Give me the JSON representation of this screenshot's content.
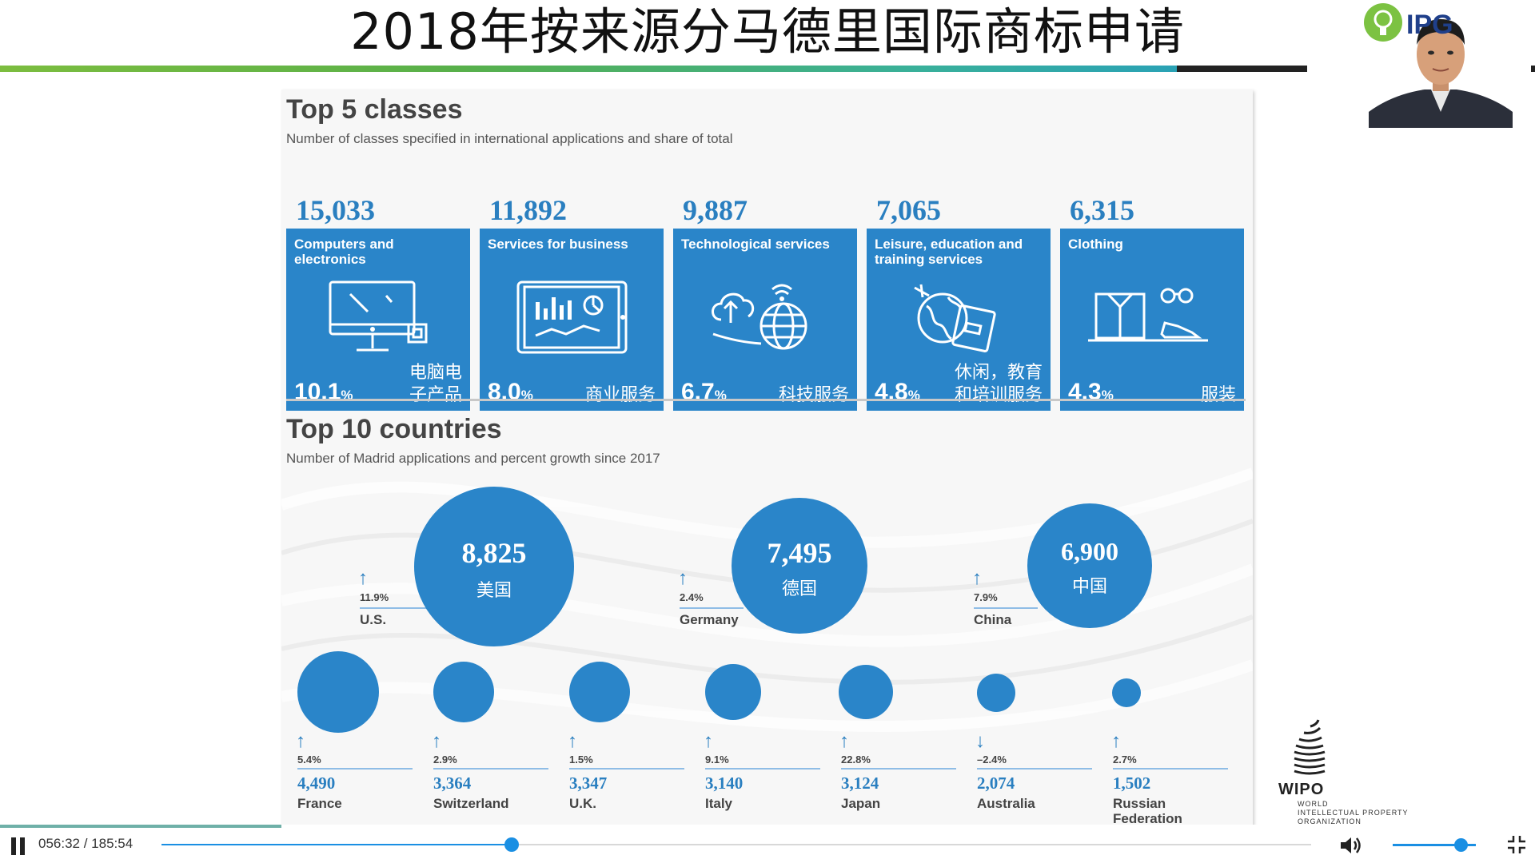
{
  "title": "2018年按来源分马德里国际商标申请",
  "classes_section": {
    "title": "Top 5 classes",
    "subtitle": "Number of classes specified in international applications and share of total",
    "items": [
      {
        "count": "15,033",
        "name": "Computers and electronics",
        "share": "10.1",
        "unit": "%",
        "cn": "电脑电\n子产品",
        "icon": "computer-icon"
      },
      {
        "count": "11,892",
        "name": "Services for business",
        "share": "8.0",
        "unit": "%",
        "cn": "商业服务",
        "icon": "tablet-chart-icon"
      },
      {
        "count": "9,887",
        "name": "Technological services",
        "share": "6.7",
        "unit": "%",
        "cn": "科技服务",
        "icon": "cloud-globe-icon"
      },
      {
        "count": "7,065",
        "name": "Leisure, education and training services",
        "share": "4.8",
        "unit": "%",
        "cn": "休闲，教育\n和培训服务",
        "icon": "globe-passport-icon"
      },
      {
        "count": "6,315",
        "name": "Clothing",
        "share": "4.3",
        "unit": "%",
        "cn": "服装",
        "icon": "clothing-icon"
      }
    ]
  },
  "countries_section": {
    "title": "Top 10 countries",
    "subtitle": "Number of Madrid applications and percent growth since 2017",
    "top": [
      {
        "name": "U.S.",
        "value": "8,825",
        "value_num": 8825,
        "cn": "美国",
        "growth": "11.9",
        "unit": "%",
        "direction": "up"
      },
      {
        "name": "Germany",
        "value": "7,495",
        "value_num": 7495,
        "cn": "德国",
        "growth": "2.4",
        "unit": "%",
        "direction": "up"
      },
      {
        "name": "China",
        "value": "6,900",
        "value_num": 6900,
        "cn": "中国",
        "growth": "7.9",
        "unit": "%",
        "direction": "up"
      }
    ],
    "others": [
      {
        "name": "France",
        "value": "4,490",
        "value_num": 4490,
        "growth": "5.4",
        "unit": "%",
        "direction": "up"
      },
      {
        "name": "Switzerland",
        "value": "3,364",
        "value_num": 3364,
        "growth": "2.9",
        "unit": "%",
        "direction": "up"
      },
      {
        "name": "U.K.",
        "value": "3,347",
        "value_num": 3347,
        "growth": "1.5",
        "unit": "%",
        "direction": "up"
      },
      {
        "name": "Italy",
        "value": "3,140",
        "value_num": 3140,
        "growth": "9.1",
        "unit": "%",
        "direction": "up"
      },
      {
        "name": "Japan",
        "value": "3,124",
        "value_num": 3124,
        "growth": "22.8",
        "unit": "%",
        "direction": "up"
      },
      {
        "name": "Australia",
        "value": "2,074",
        "value_num": 2074,
        "growth": "–2.4",
        "unit": "%",
        "direction": "down"
      },
      {
        "name": "Russian Federation",
        "value": "1,502",
        "value_num": 1502,
        "growth": "2.7",
        "unit": "%",
        "direction": "up"
      }
    ]
  },
  "wipo": {
    "name": "WIPO",
    "sub1": "WORLD",
    "sub2": "INTELLECTUAL PROPERTY",
    "sub3": "ORGANIZATION"
  },
  "webcam": {
    "logo_text": "IPG",
    "icon": "webcam-presenter"
  },
  "player": {
    "time_display": "056:32 / 185:54",
    "progress": 0.3043,
    "volume": 0.82,
    "accent_color": "#1a8fe3",
    "pause_icon": "pause-icon",
    "volume_icon": "volume-icon",
    "fullscreen_icon": "exit-fullscreen-icon"
  },
  "colors": {
    "bubble": "#2a85c9",
    "value_text": "#2a7fc0"
  }
}
